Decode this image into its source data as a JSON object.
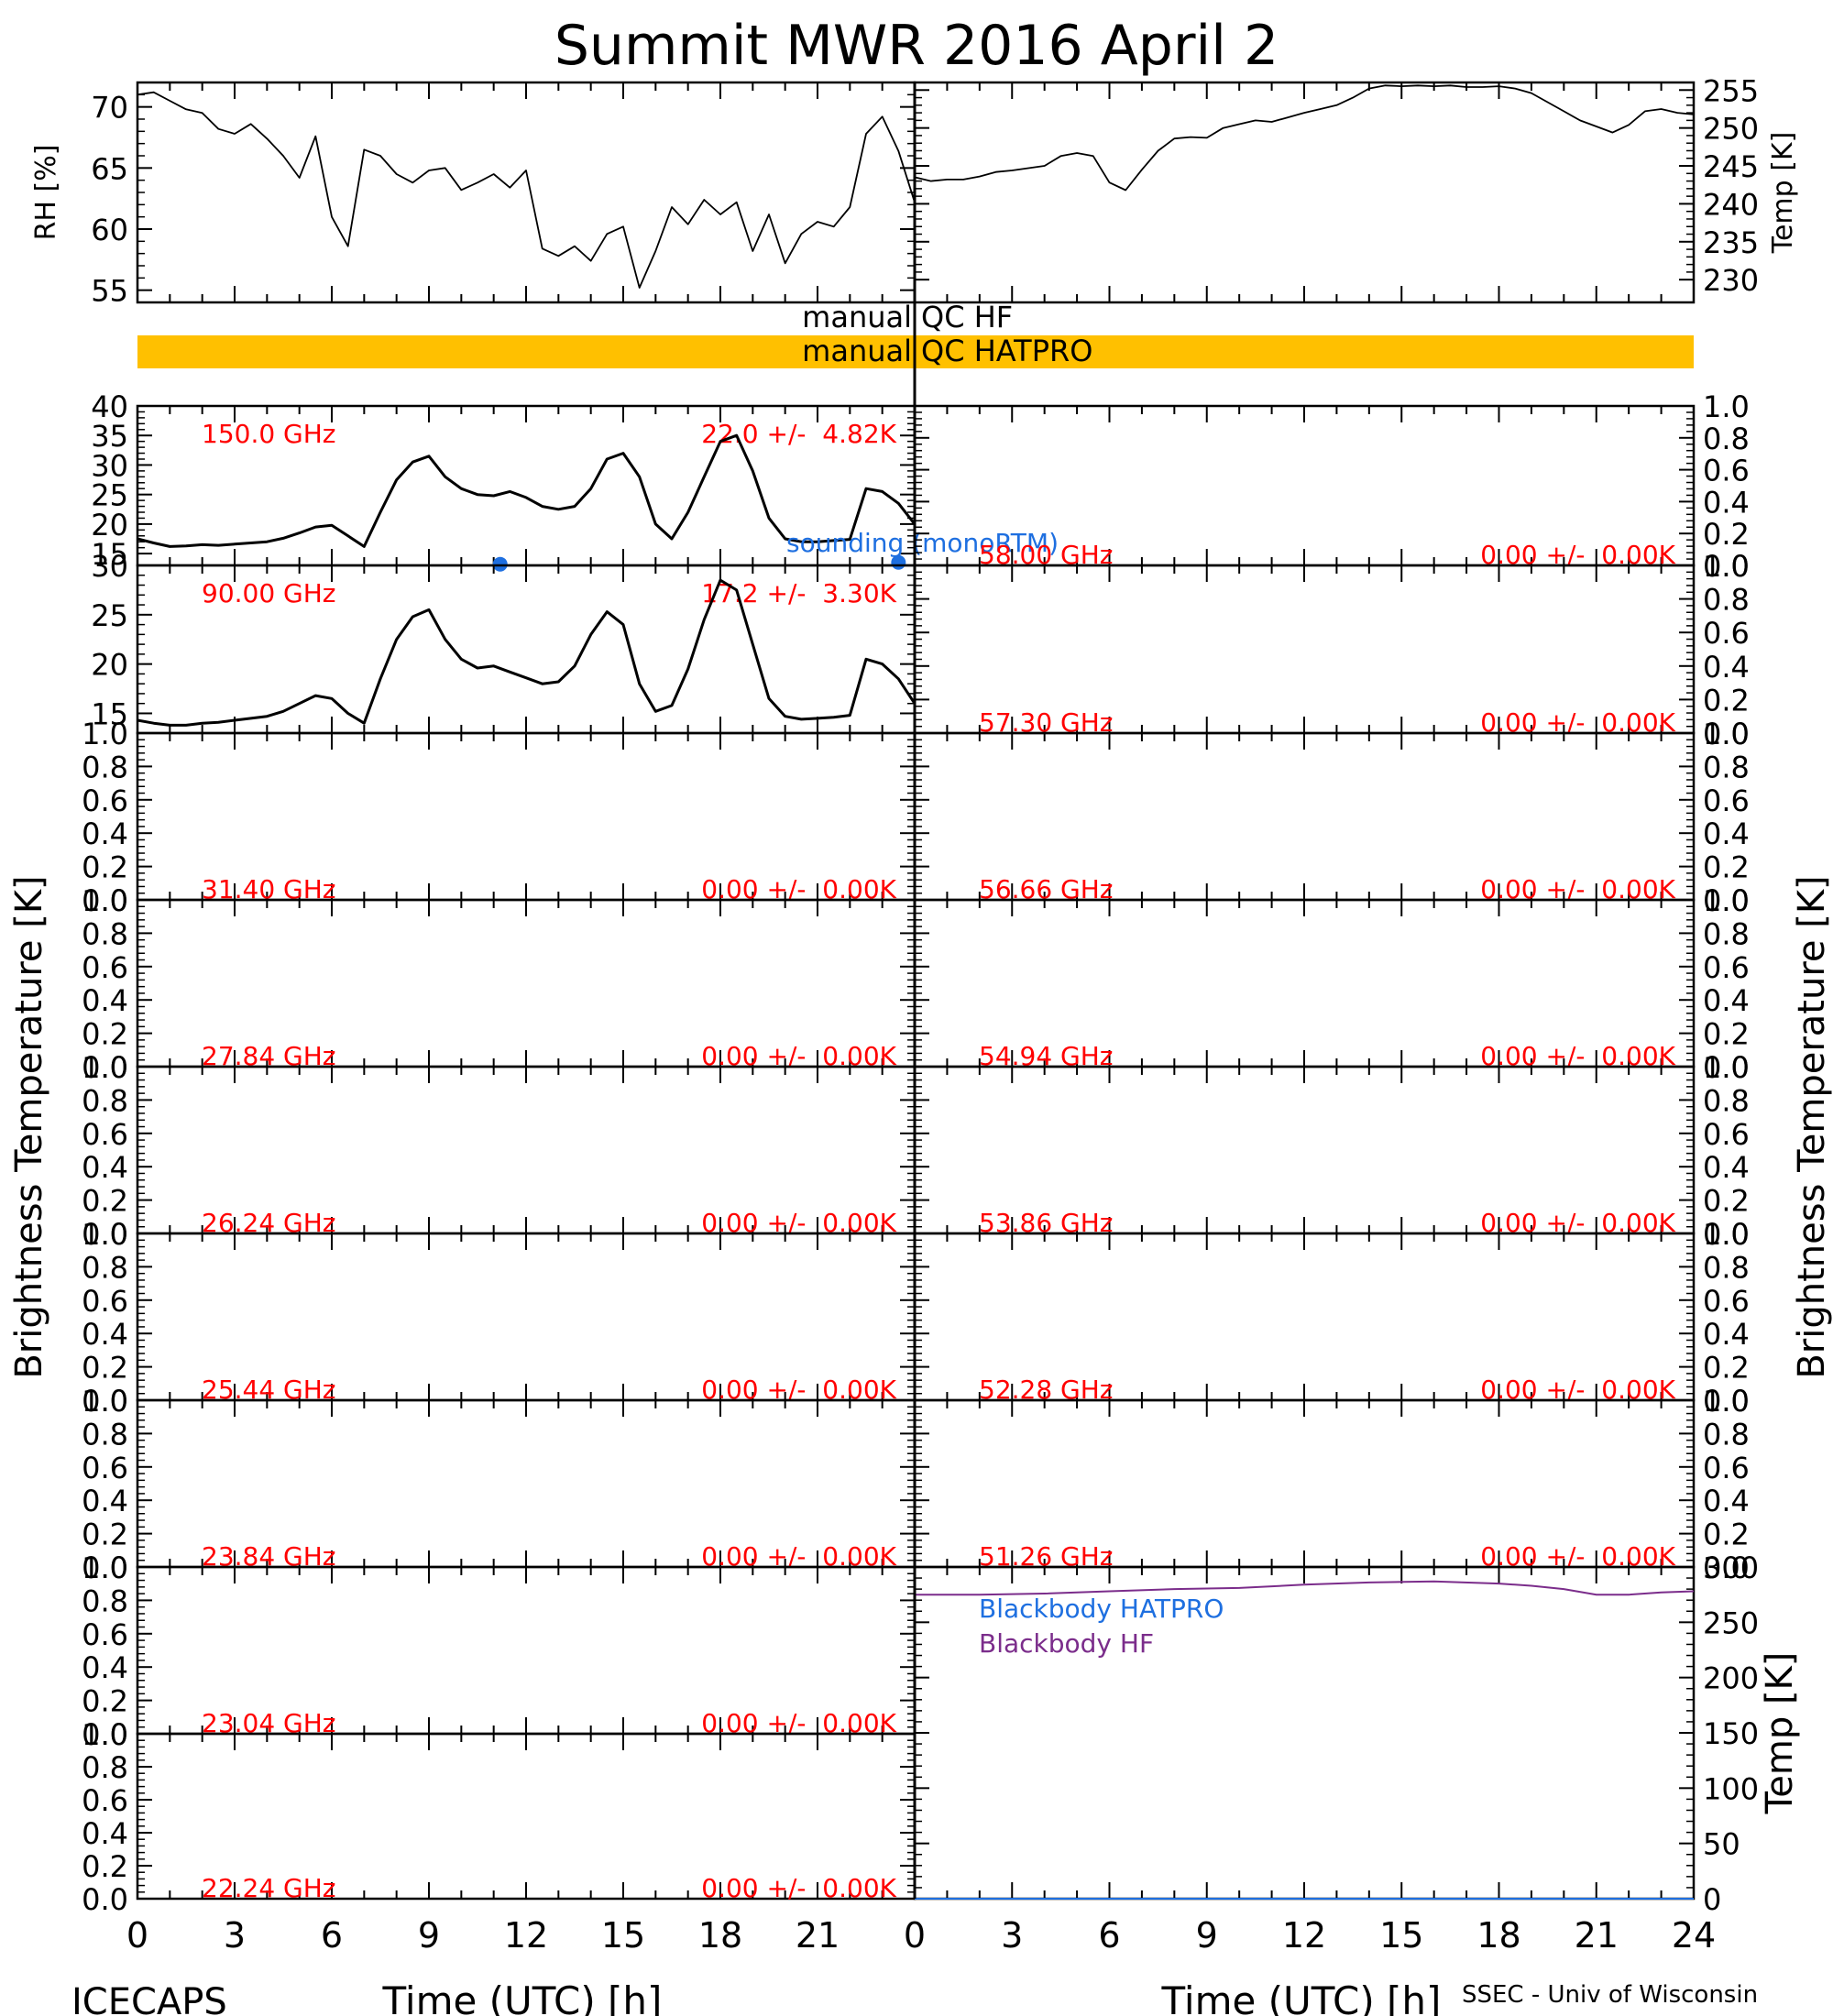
{
  "title": "Summit MWR 2016 April  2",
  "footer": {
    "left": "ICECAPS",
    "right": "SSEC - Univ of Wisconsin"
  },
  "axes": {
    "x_label": "Time (UTC) [h]",
    "x_ticks": [
      "0",
      "3",
      "6",
      "9",
      "12",
      "15",
      "18",
      "21",
      "24"
    ],
    "left_ylabel": "Brightness Temperature [K]",
    "right_ylabel": "Brightness Temperature [K]"
  },
  "qc": {
    "hf_label": "manual QC HF",
    "hatpro_label": "manual QC HATPRO",
    "hatpro_color": "#FFC000"
  },
  "colors": {
    "annotation": "#FF0000",
    "sounding": "#1E6FE0",
    "blackbody_hf": "#7B2D8B",
    "trace": "#000000"
  },
  "chart_data": [
    {
      "id": "rh",
      "type": "line",
      "ylabel": "RH [%]",
      "ylim": [
        54,
        72
      ],
      "yticks": [
        55,
        60,
        65,
        70
      ],
      "xlim": [
        0,
        24
      ],
      "x": [
        0,
        0.5,
        1,
        1.5,
        2,
        2.5,
        3,
        3.5,
        4,
        4.5,
        5,
        5.5,
        6,
        6.5,
        7,
        7.5,
        8,
        8.5,
        9,
        9.5,
        10,
        10.5,
        11,
        11.5,
        12,
        12.5,
        13,
        13.5,
        14,
        14.5,
        15,
        15.5,
        16,
        16.5,
        17,
        17.5,
        18,
        18.5,
        19,
        19.5,
        20,
        20.5,
        21,
        21.5,
        22,
        22.5,
        23,
        23.5,
        24
      ],
      "values": [
        71,
        71.2,
        70.5,
        69.8,
        69.5,
        68.2,
        67.8,
        68.6,
        67.4,
        66,
        64.2,
        67.6,
        61,
        58.6,
        66.5,
        66,
        64.5,
        63.8,
        64.8,
        65,
        63.2,
        63.8,
        64.5,
        63.4,
        64.8,
        58.4,
        57.8,
        58.6,
        57.4,
        59.6,
        60.2,
        55.2,
        58.2,
        61.8,
        60.4,
        62.4,
        61.2,
        62.2,
        58.2,
        61.2,
        57.2,
        59.6,
        60.6,
        60.2,
        61.8,
        67.8,
        69.2,
        66.4,
        62.2
      ]
    },
    {
      "id": "temp",
      "type": "line",
      "ylabel": "Temp [K]",
      "ylim": [
        227,
        256
      ],
      "yticks": [
        230,
        235,
        240,
        245,
        250,
        255
      ],
      "xlim": [
        0,
        24
      ],
      "x": [
        0,
        0.5,
        1,
        1.5,
        2,
        2.5,
        3,
        3.5,
        4,
        4.5,
        5,
        5.5,
        6,
        6.5,
        7,
        7.5,
        8,
        8.5,
        9,
        9.5,
        10,
        10.5,
        11,
        11.5,
        12,
        12.5,
        13,
        13.5,
        14,
        14.5,
        15,
        15.5,
        16,
        16.5,
        17,
        17.5,
        18,
        18.5,
        19,
        19.5,
        20,
        20.5,
        21,
        21.5,
        22,
        22.5,
        23,
        23.5,
        24
      ],
      "values": [
        243.5,
        243,
        243.2,
        243.2,
        243.6,
        244.2,
        244.4,
        244.7,
        245,
        246.3,
        246.7,
        246.3,
        242.8,
        241.8,
        244.5,
        247,
        248.6,
        248.8,
        248.7,
        250,
        250.5,
        251,
        250.8,
        251.4,
        252,
        252.5,
        253,
        254,
        255.2,
        255.6,
        255.5,
        255.6,
        255.5,
        255.6,
        255.4,
        255.4,
        255.5,
        255.2,
        254.6,
        253.4,
        252.2,
        251,
        250.2,
        249.4,
        250.4,
        252.2,
        252.5,
        252,
        251.8
      ]
    },
    {
      "id": "bt150",
      "type": "line",
      "frequency": "150.0 GHz",
      "stats": "22.0 +/-  4.82K",
      "ylim": [
        13,
        40
      ],
      "yticks": [
        15,
        20,
        25,
        30,
        35,
        40
      ],
      "sounding_label": "sounding (monoRTM)",
      "sounding_points": [
        {
          "x": 11.2,
          "y": 13.2
        },
        {
          "x": 23.5,
          "y": 13.5
        }
      ],
      "x": [
        0,
        0.5,
        1,
        1.5,
        2,
        2.5,
        3,
        3.5,
        4,
        4.5,
        5,
        5.5,
        6,
        6.5,
        7,
        7.5,
        8,
        8.5,
        9,
        9.5,
        10,
        10.5,
        11,
        11.5,
        12,
        12.5,
        13,
        13.5,
        14,
        14.5,
        15,
        15.5,
        16,
        16.5,
        17,
        17.5,
        18,
        18.5,
        19,
        19.5,
        20,
        20.5,
        21,
        21.5,
        22,
        22.5,
        23,
        23.5,
        24
      ],
      "values": [
        17.5,
        16.8,
        16.2,
        16.3,
        16.5,
        16.4,
        16.6,
        16.8,
        17,
        17.6,
        18.5,
        19.5,
        19.8,
        18,
        16.2,
        22,
        27.5,
        30.5,
        31.5,
        28,
        26,
        25,
        24.8,
        25.5,
        24.5,
        23,
        22.5,
        23,
        26,
        31,
        32,
        28,
        20,
        17.5,
        22,
        28,
        34,
        35,
        29,
        21,
        17.5,
        17,
        17,
        17.2,
        17.4,
        26,
        25.5,
        23.5,
        20
      ]
    },
    {
      "id": "bt90",
      "type": "line",
      "frequency": "90.00 GHz",
      "stats": "17.2 +/-  3.30K",
      "ylim": [
        13,
        30
      ],
      "yticks": [
        15,
        20,
        25,
        30
      ],
      "x": [
        0,
        0.5,
        1,
        1.5,
        2,
        2.5,
        3,
        3.5,
        4,
        4.5,
        5,
        5.5,
        6,
        6.5,
        7,
        7.5,
        8,
        8.5,
        9,
        9.5,
        10,
        10.5,
        11,
        11.5,
        12,
        12.5,
        13,
        13.5,
        14,
        14.5,
        15,
        15.5,
        16,
        16.5,
        17,
        17.5,
        18,
        18.5,
        19,
        19.5,
        20,
        20.5,
        21,
        21.5,
        22,
        22.5,
        23,
        23.5,
        24
      ],
      "values": [
        14.3,
        14,
        13.8,
        13.8,
        14,
        14.1,
        14.3,
        14.5,
        14.7,
        15.2,
        16,
        16.8,
        16.5,
        15,
        14,
        18.5,
        22.5,
        24.8,
        25.5,
        22.5,
        20.5,
        19.6,
        19.8,
        19.2,
        18.6,
        18,
        18.2,
        19.8,
        23,
        25.3,
        24,
        18,
        15.2,
        15.8,
        19.5,
        24.5,
        28.5,
        27.5,
        22,
        16.5,
        14.7,
        14.4,
        14.5,
        14.6,
        14.8,
        20.5,
        20,
        18.5,
        16
      ]
    },
    {
      "id": "bt58",
      "type": "line",
      "frequency": "58.00 GHz",
      "stats": "0.00 +/-  0.00K",
      "ylim": [
        0,
        1
      ]
    },
    {
      "id": "bt5730",
      "type": "line",
      "frequency": "57.30 GHz",
      "stats": "0.00 +/-  0.00K",
      "ylim": [
        0,
        1
      ]
    },
    {
      "id": "bt3140",
      "type": "line",
      "frequency": "31.40 GHz",
      "stats": "0.00 +/-  0.00K",
      "ylim": [
        0,
        1
      ]
    },
    {
      "id": "bt5666",
      "type": "line",
      "frequency": "56.66 GHz",
      "stats": "0.00 +/-  0.00K",
      "ylim": [
        0,
        1
      ]
    },
    {
      "id": "bt2784",
      "type": "line",
      "frequency": "27.84 GHz",
      "stats": "0.00 +/-  0.00K",
      "ylim": [
        0,
        1
      ]
    },
    {
      "id": "bt5494",
      "type": "line",
      "frequency": "54.94 GHz",
      "stats": "0.00 +/-  0.00K",
      "ylim": [
        0,
        1
      ]
    },
    {
      "id": "bt2624",
      "type": "line",
      "frequency": "26.24 GHz",
      "stats": "0.00 +/-  0.00K",
      "ylim": [
        0,
        1
      ]
    },
    {
      "id": "bt5386",
      "type": "line",
      "frequency": "53.86 GHz",
      "stats": "0.00 +/-  0.00K",
      "ylim": [
        0,
        1
      ]
    },
    {
      "id": "bt2544",
      "type": "line",
      "frequency": "25.44 GHz",
      "stats": "0.00 +/-  0.00K",
      "ylim": [
        0,
        1
      ]
    },
    {
      "id": "bt5228",
      "type": "line",
      "frequency": "52.28 GHz",
      "stats": "0.00 +/-  0.00K",
      "ylim": [
        0,
        1
      ]
    },
    {
      "id": "bt2384",
      "type": "line",
      "frequency": "23.84 GHz",
      "stats": "0.00 +/-  0.00K",
      "ylim": [
        0,
        1
      ]
    },
    {
      "id": "bt5126",
      "type": "line",
      "frequency": "51.26 GHz",
      "stats": "0.00 +/-  0.00K",
      "ylim": [
        0,
        1
      ]
    },
    {
      "id": "bt2304",
      "type": "line",
      "frequency": "23.04 GHz",
      "stats": "0.00 +/-  0.00K",
      "ylim": [
        0,
        1
      ]
    },
    {
      "id": "bt2224",
      "type": "line",
      "frequency": "22.24 GHz",
      "stats": "0.00 +/-  0.00K",
      "ylim": [
        0,
        1
      ]
    },
    {
      "id": "blackbody",
      "type": "line",
      "ylabel": "Temp [K]",
      "ylim": [
        0,
        300
      ],
      "yticks": [
        0,
        50,
        100,
        150,
        200,
        250,
        300
      ],
      "legend": [
        "Blackbody HATPRO",
        "Blackbody HF"
      ],
      "x": [
        0,
        2,
        4,
        6,
        8,
        10,
        12,
        14,
        16,
        18,
        19,
        20,
        21,
        22,
        23,
        24
      ],
      "hf_values": [
        275,
        275,
        276,
        278,
        280,
        281,
        284,
        286,
        287,
        285,
        283,
        280,
        275,
        275,
        277,
        278
      ],
      "hatpro_values": [
        0,
        0,
        0,
        0,
        0,
        0,
        0,
        0,
        0,
        0,
        0,
        0,
        0,
        0,
        0,
        0
      ]
    }
  ]
}
